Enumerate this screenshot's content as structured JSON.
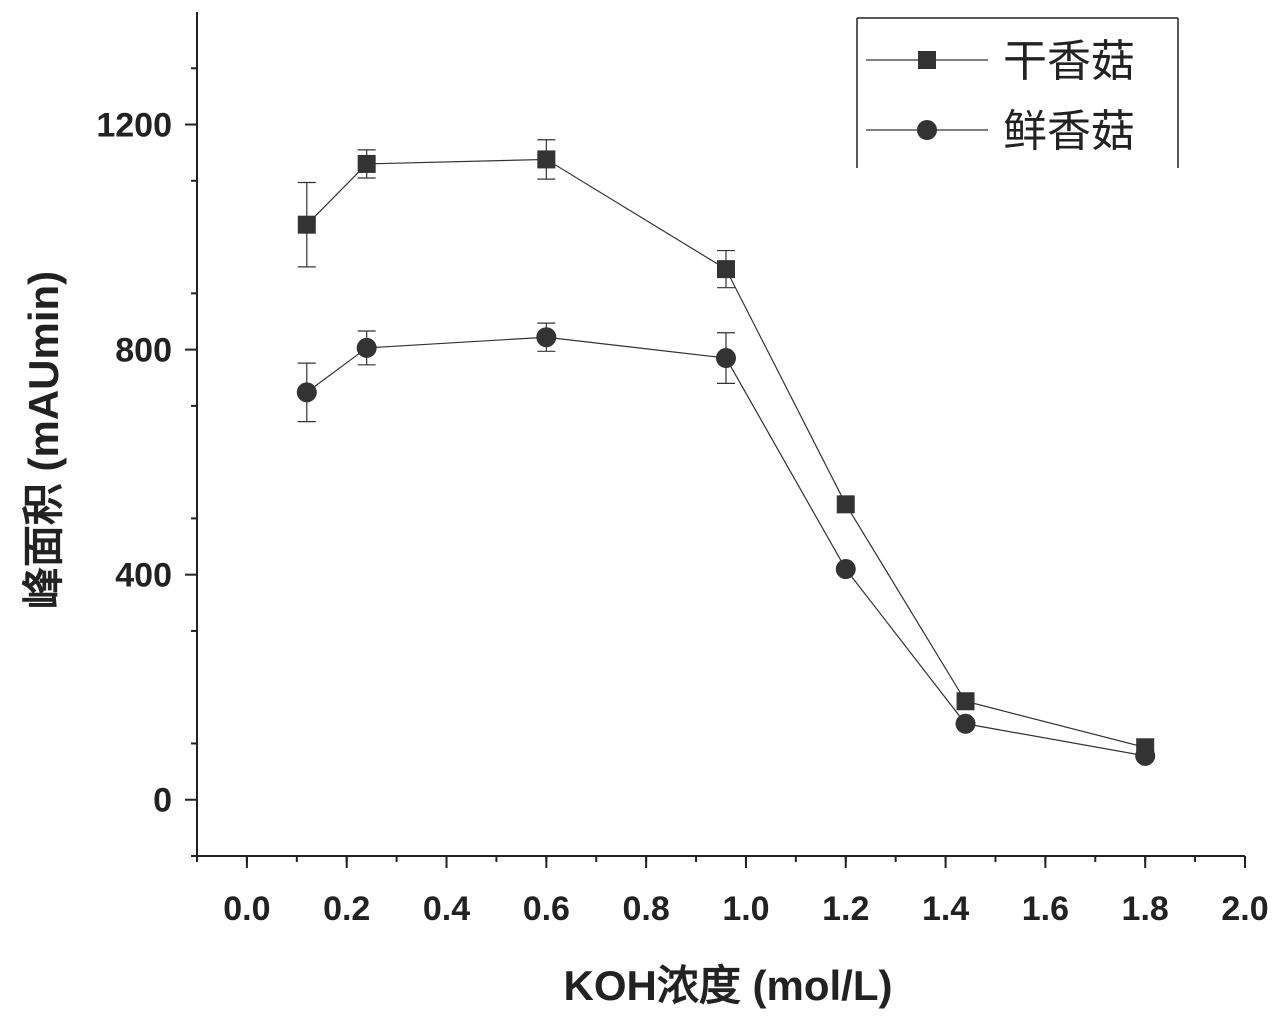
{
  "chart_data": {
    "type": "line",
    "xlabel": "KOH浓度 (mol/L)",
    "ylabel": "峰面积 (mAUmin)",
    "xlim": [
      -0.1,
      2.0
    ],
    "ylim": [
      -100,
      1400
    ],
    "x_ticks": [
      0.0,
      0.2,
      0.4,
      0.6,
      0.8,
      1.0,
      1.2,
      1.4,
      1.6,
      1.8,
      2.0
    ],
    "x_tick_labels": [
      "0.0",
      "0.2",
      "0.4",
      "0.6",
      "0.8",
      "1.0",
      "1.2",
      "1.4",
      "1.6",
      "1.8",
      "2.0"
    ],
    "y_ticks": [
      0,
      400,
      800,
      1200
    ],
    "y_tick_labels": [
      "0",
      "400",
      "800",
      "1200"
    ],
    "x_minor_step": 0.1,
    "y_minor_step": 200,
    "grid": false,
    "legend_position": "top-right",
    "colors": {
      "series": "#333333",
      "axis": "#222222"
    },
    "series": [
      {
        "name": "干香菇",
        "marker": "square",
        "x": [
          0.12,
          0.24,
          0.6,
          0.96,
          1.2,
          1.44,
          1.8
        ],
        "y": [
          1022,
          1130,
          1138,
          943,
          525,
          175,
          93
        ],
        "err": [
          75,
          25,
          35,
          33,
          0,
          0,
          15
        ]
      },
      {
        "name": "鲜香菇",
        "marker": "circle",
        "x": [
          0.12,
          0.24,
          0.6,
          0.96,
          1.2,
          1.44,
          1.8
        ],
        "y": [
          724,
          803,
          822,
          785,
          410,
          135,
          78
        ],
        "err": [
          52,
          30,
          25,
          45,
          0,
          0,
          0
        ]
      }
    ]
  }
}
